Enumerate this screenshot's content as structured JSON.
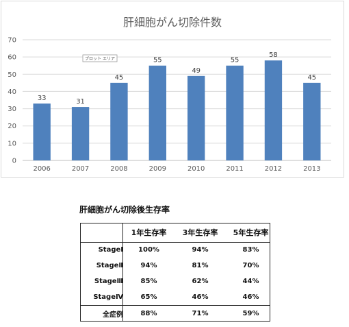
{
  "chart_data": {
    "type": "bar",
    "title": "肝細胞がん切除件数",
    "categories": [
      "2006",
      "2007",
      "2008",
      "2009",
      "2010",
      "2011",
      "2012",
      "2013"
    ],
    "values": [
      33,
      31,
      45,
      55,
      49,
      55,
      58,
      45
    ],
    "ylim": [
      0,
      70
    ],
    "yticks": [
      0,
      10,
      20,
      30,
      40,
      50,
      60,
      70
    ],
    "grid": true,
    "bar_color": "#4f81bd",
    "plot_area_tag": "プロット エリア"
  },
  "table": {
    "title": "肝細胞がん切除後生存率",
    "headers": [
      "",
      "1年生存率",
      "3年生存率",
      "5年生存率"
    ],
    "rows": [
      {
        "label": "StageⅠ",
        "values": [
          "100%",
          "94%",
          "83%"
        ]
      },
      {
        "label": "StageⅡ",
        "values": [
          "94%",
          "81%",
          "70%"
        ]
      },
      {
        "label": "StageⅢ",
        "values": [
          "85%",
          "62%",
          "44%"
        ]
      },
      {
        "label": "StageⅣ",
        "values": [
          "65%",
          "46%",
          "46%"
        ]
      },
      {
        "label": "全症例",
        "values": [
          "88%",
          "71%",
          "59%"
        ]
      }
    ]
  }
}
